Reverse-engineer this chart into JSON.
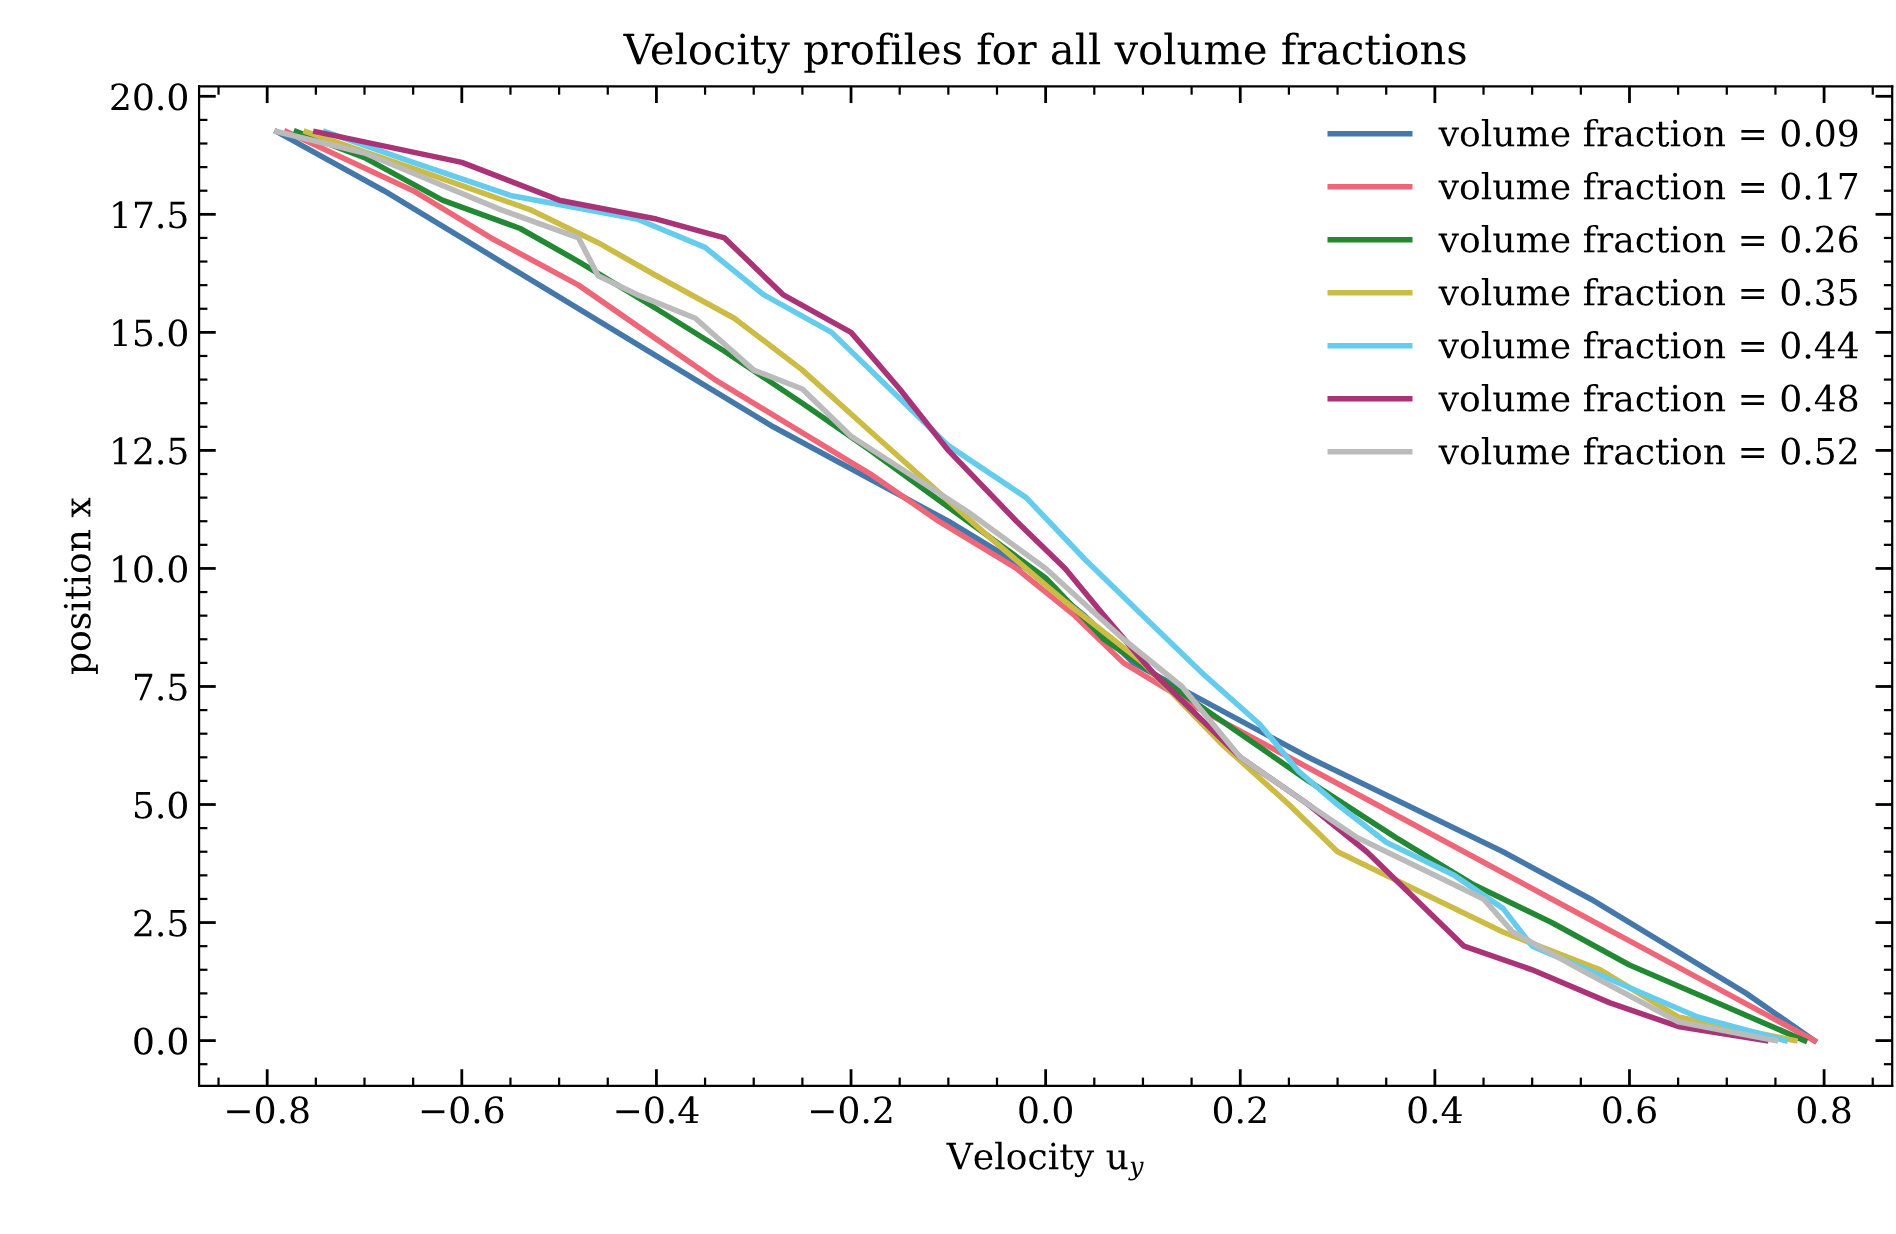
{
  "chart_data": {
    "type": "line",
    "title": "Velocity profiles for all volume fractions",
    "xlabel": "Velocity u$_{y}$",
    "ylabel": "position x",
    "xlim": [
      -0.87,
      0.87
    ],
    "xticks": [
      {
        "value": -0.8,
        "label": "−0.8"
      },
      {
        "value": -0.6,
        "label": "−0.6"
      },
      {
        "value": -0.4,
        "label": "−0.4"
      },
      {
        "value": -0.2,
        "label": "−0.2"
      },
      {
        "value": 0.0,
        "label": "0.0"
      },
      {
        "value": 0.2,
        "label": "0.2"
      },
      {
        "value": 0.4,
        "label": "0.4"
      },
      {
        "value": 0.6,
        "label": "0.6"
      },
      {
        "value": 0.8,
        "label": "0.8"
      }
    ],
    "ylim": [
      -0.96,
      20.21
    ],
    "yticks": [
      {
        "value": 0,
        "label": "0.0"
      },
      {
        "value": 2.5,
        "label": "2.5"
      },
      {
        "value": 5,
        "label": "5.0"
      },
      {
        "value": 7.5,
        "label": "7.5"
      },
      {
        "value": 10,
        "label": "10.0"
      },
      {
        "value": 12.5,
        "label": "12.5"
      },
      {
        "value": 15,
        "label": "15.0"
      },
      {
        "value": 17.5,
        "label": "17.5"
      },
      {
        "value": 20,
        "label": "20.0"
      }
    ],
    "grid": false,
    "legend": "top right",
    "marker": "none",
    "line_style": "solid",
    "series": [
      {
        "name": "volume fraction = 0.09",
        "color": "#4477aa",
        "x": [
          0.79,
          0.72,
          0.64,
          0.56,
          0.47,
          0.37,
          0.27,
          0.18,
          0.09,
          0.04,
          -0.02,
          -0.1,
          -0.19,
          -0.28,
          -0.36,
          -0.44,
          -0.52,
          -0.6,
          -0.68,
          -0.79
        ],
        "values": [
          0,
          1,
          2,
          3,
          4,
          5,
          6,
          7,
          8,
          9,
          10,
          11,
          12,
          13,
          14,
          15,
          16,
          17,
          18,
          19.25
        ]
      },
      {
        "name": "volume fraction = 0.17",
        "color": "#ee6677",
        "x": [
          0.79,
          0.7,
          0.61,
          0.52,
          0.43,
          0.34,
          0.25,
          0.16,
          0.08,
          0.03,
          -0.03,
          -0.11,
          -0.18,
          -0.26,
          -0.34,
          -0.41,
          -0.48,
          -0.57,
          -0.65,
          -0.78
        ],
        "values": [
          0,
          1,
          2,
          3,
          4,
          5,
          6,
          7,
          8,
          9,
          10,
          11,
          12,
          13,
          14,
          15,
          16,
          17,
          18,
          19.25
        ]
      },
      {
        "name": "volume fraction = 0.26",
        "color": "#228833",
        "x": [
          0.78,
          0.69,
          0.6,
          0.52,
          0.44,
          0.36,
          0.27,
          0.2,
          0.13,
          0.06,
          0.0,
          -0.08,
          -0.18,
          -0.25,
          -0.33,
          -0.4,
          -0.48,
          -0.54,
          -0.62,
          -0.7,
          -0.77
        ],
        "values": [
          0,
          0.8,
          1.6,
          2.5,
          3.3,
          4.3,
          5.5,
          6.5,
          7.5,
          8.5,
          9.8,
          11,
          12.5,
          13.5,
          14.6,
          15.5,
          16.5,
          17.2,
          17.8,
          18.7,
          19.25
        ]
      },
      {
        "name": "volume fraction = 0.35",
        "color": "#ccbb44",
        "x": [
          0.77,
          0.65,
          0.57,
          0.47,
          0.4,
          0.3,
          0.25,
          0.18,
          0.1,
          0.02,
          -0.06,
          -0.12,
          -0.18,
          -0.25,
          -0.32,
          -0.4,
          -0.46,
          -0.53,
          -0.64,
          -0.76
        ],
        "values": [
          0,
          0.5,
          1.5,
          2.3,
          3.0,
          4.0,
          5.0,
          6.3,
          8.0,
          9.3,
          10.7,
          11.8,
          12.9,
          14.2,
          15.3,
          16.2,
          16.9,
          17.6,
          18.4,
          19.25
        ]
      },
      {
        "name": "volume fraction = 0.44",
        "color": "#66ccee",
        "x": [
          0.76,
          0.67,
          0.58,
          0.5,
          0.47,
          0.42,
          0.35,
          0.3,
          0.26,
          0.22,
          0.16,
          0.1,
          0.04,
          -0.02,
          -0.1,
          -0.16,
          -0.22,
          -0.29,
          -0.35,
          -0.42,
          -0.55,
          -0.65,
          -0.74
        ],
        "values": [
          0,
          0.5,
          1.3,
          2.0,
          2.8,
          3.5,
          4.2,
          5.0,
          5.7,
          6.7,
          7.8,
          9.0,
          10.2,
          11.5,
          12.6,
          13.8,
          15.0,
          15.8,
          16.8,
          17.4,
          17.9,
          18.6,
          19.25
        ]
      },
      {
        "name": "volume fraction = 0.48",
        "color": "#aa3377",
        "x": [
          0.74,
          0.65,
          0.58,
          0.5,
          0.43,
          0.38,
          0.33,
          0.27,
          0.2,
          0.15,
          0.11,
          0.06,
          0.02,
          -0.03,
          -0.1,
          -0.15,
          -0.2,
          -0.27,
          -0.33,
          -0.4,
          -0.5,
          -0.6,
          -0.75
        ],
        "values": [
          0,
          0.3,
          0.8,
          1.5,
          2.0,
          3.0,
          4.0,
          5.0,
          6.0,
          7.0,
          7.8,
          9.0,
          10.0,
          11.0,
          12.5,
          13.8,
          15.0,
          15.8,
          17.0,
          17.4,
          17.8,
          18.6,
          19.25
        ]
      },
      {
        "name": "volume fraction = 0.52",
        "color": "#bbbbbb",
        "x": [
          0.75,
          0.65,
          0.55,
          0.48,
          0.45,
          0.4,
          0.32,
          0.27,
          0.2,
          0.14,
          0.08,
          0.0,
          -0.08,
          -0.14,
          -0.2,
          -0.25,
          -0.3,
          -0.36,
          -0.42,
          -0.46,
          -0.48,
          -0.56,
          -0.7,
          -0.79
        ],
        "values": [
          0,
          0.4,
          1.5,
          2.3,
          3.0,
          3.5,
          4.3,
          5.0,
          6.0,
          7.5,
          8.5,
          10.0,
          11.2,
          12.0,
          12.8,
          13.8,
          14.2,
          15.3,
          15.8,
          16.2,
          17.0,
          17.6,
          18.8,
          19.25
        ]
      }
    ]
  }
}
